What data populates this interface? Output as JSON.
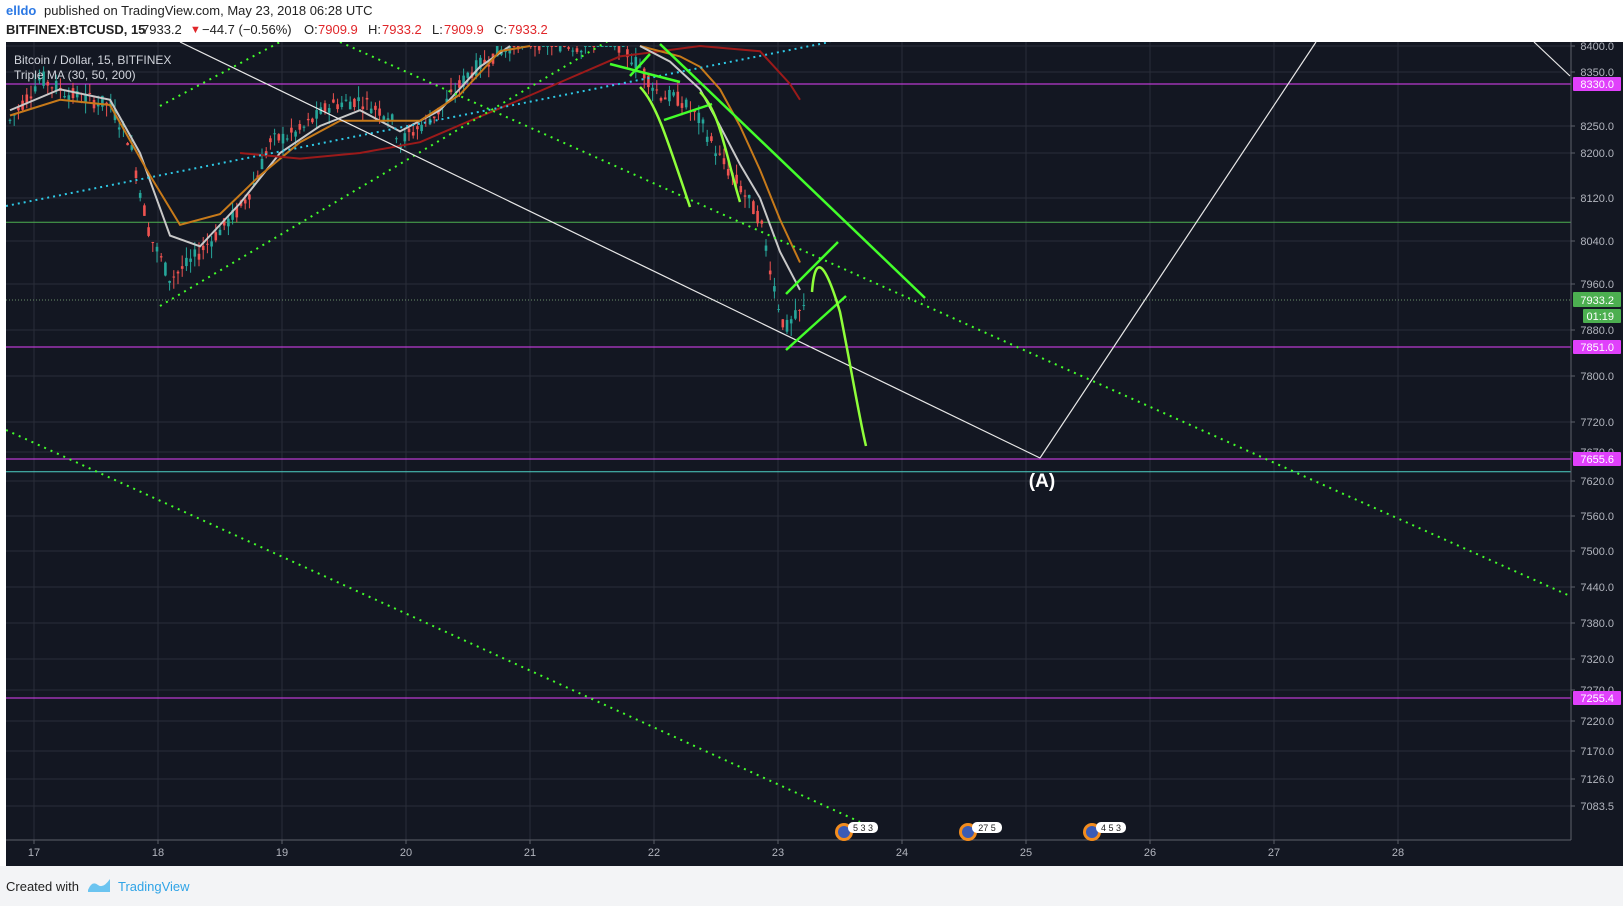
{
  "header": {
    "author": "elldo",
    "published": "published on TradingView.com, May 23, 2018 06:28 UTC"
  },
  "ticker": {
    "symbol": "BITFINEX:BTCUSD, 15",
    "last": "7933.2",
    "change": "−44.7 (−0.56%)",
    "open_label": "O:",
    "open": "7909.9",
    "high_label": "H:",
    "high": "7933.2",
    "low_label": "L:",
    "low": "7909.9",
    "close_label": "C:",
    "close": "7933.2"
  },
  "legend": {
    "line1": "Bitcoin / Dollar, 15, BITFINEX",
    "line2": "Triple MA (30, 50, 200)"
  },
  "footer": {
    "created": "Created with",
    "brand": "TradingView"
  },
  "colors": {
    "background": "#131722",
    "grid": "#2a2e39",
    "magenta": "#e040fb",
    "green": "#43ff2b",
    "lightgreen": "#8fff3a",
    "cyan": "#2ec9e6",
    "white": "#e8e8e8",
    "ma_fast": "#c8c8c8",
    "ma_mid": "#c77a1a",
    "ma_slow": "#9b1a1a",
    "candle_up": "#26a69a",
    "candle_down": "#ef5350",
    "price_tag": "#4caf50"
  },
  "chart_data": {
    "type": "candlestick",
    "title": "Bitcoin / Dollar, 15, BITFINEX",
    "x_labels": [
      "17",
      "18",
      "19",
      "20",
      "21",
      "22",
      "23",
      "24",
      "25",
      "26",
      "27",
      "28"
    ],
    "y_ticks": [
      "8400.0",
      "8350.0",
      "8250.0",
      "8200.0",
      "8120.0",
      "8040.0",
      "7960.0",
      "7880.0",
      "7800.0",
      "7720.0",
      "7670.0",
      "7620.0",
      "7560.0",
      "7500.0",
      "7440.0",
      "7380.0",
      "7320.0",
      "7270.0",
      "7220.0",
      "7170.0",
      "7126.0",
      "7083.5"
    ],
    "ylim": [
      7060,
      8400
    ],
    "last_price": 7933.2,
    "countdown": "01:19",
    "horizontal_levels": [
      {
        "price": 8330.0,
        "label": "8330.0",
        "color": "magenta"
      },
      {
        "price": 8075.0,
        "label": "",
        "color": "green"
      },
      {
        "price": 7851.0,
        "label": "7851.0",
        "color": "magenta"
      },
      {
        "price": 7655.6,
        "label": "7655.6",
        "color": "magenta"
      },
      {
        "price": 7635.0,
        "label": "",
        "color": "cyan"
      },
      {
        "price": 7255.4,
        "label": "7255.4",
        "color": "magenta"
      }
    ],
    "wave_label": "(A)",
    "event_badges": [
      "5 3 3",
      "27 5",
      "4 5 3"
    ],
    "series": [
      {
        "name": "Triple MA (30, 50, 200)",
        "values": []
      }
    ]
  }
}
